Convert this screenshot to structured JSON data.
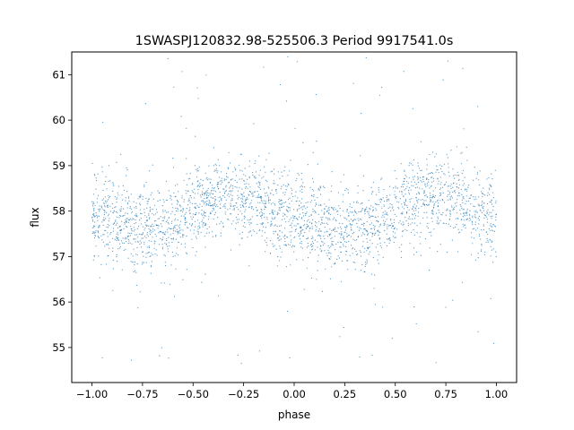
{
  "chart_data": {
    "type": "scatter",
    "title": "1SWASPJ120832.98-525506.3 Period 9917541.0s",
    "xlabel": "phase",
    "ylabel": "flux",
    "xlim": [
      -1.1,
      1.1
    ],
    "ylim": [
      54.23,
      61.5
    ],
    "xticks": [
      -1.0,
      -0.75,
      -0.5,
      -0.25,
      0.0,
      0.25,
      0.5,
      0.75,
      1.0
    ],
    "xtick_labels": [
      "−1.00",
      "−0.75",
      "−0.50",
      "−0.25",
      "0.00",
      "0.25",
      "0.50",
      "0.75",
      "1.00"
    ],
    "yticks": [
      55,
      56,
      57,
      58,
      59,
      60,
      61
    ],
    "ytick_labels": [
      "55",
      "56",
      "57",
      "58",
      "59",
      "60",
      "61"
    ],
    "grid": false,
    "legend": false,
    "marker_color": "#1f77b4",
    "series": [
      {
        "phase_range": [
          -1.0,
          1.0
        ],
        "trend": {
          "phase": [
            -1.0,
            -0.875,
            -0.75,
            -0.625,
            -0.5,
            -0.4,
            -0.3,
            -0.2,
            -0.1,
            0.0,
            0.125,
            0.25,
            0.375,
            0.5,
            0.6,
            0.7,
            0.8,
            0.9,
            1.0
          ],
          "median_flux": [
            57.9,
            57.75,
            57.6,
            57.6,
            58.0,
            58.3,
            58.35,
            58.2,
            57.95,
            57.8,
            57.75,
            57.6,
            57.6,
            58.0,
            58.3,
            58.35,
            58.25,
            57.95,
            57.8
          ],
          "typical_scatter": [
            0.6,
            0.6,
            0.6,
            0.6,
            0.55,
            0.55,
            0.55,
            0.55,
            0.6,
            0.6,
            0.6,
            0.6,
            0.6,
            0.55,
            0.55,
            0.55,
            0.55,
            0.6,
            0.6
          ]
        },
        "flux_extent": [
          54.55,
          61.4
        ]
      }
    ]
  }
}
